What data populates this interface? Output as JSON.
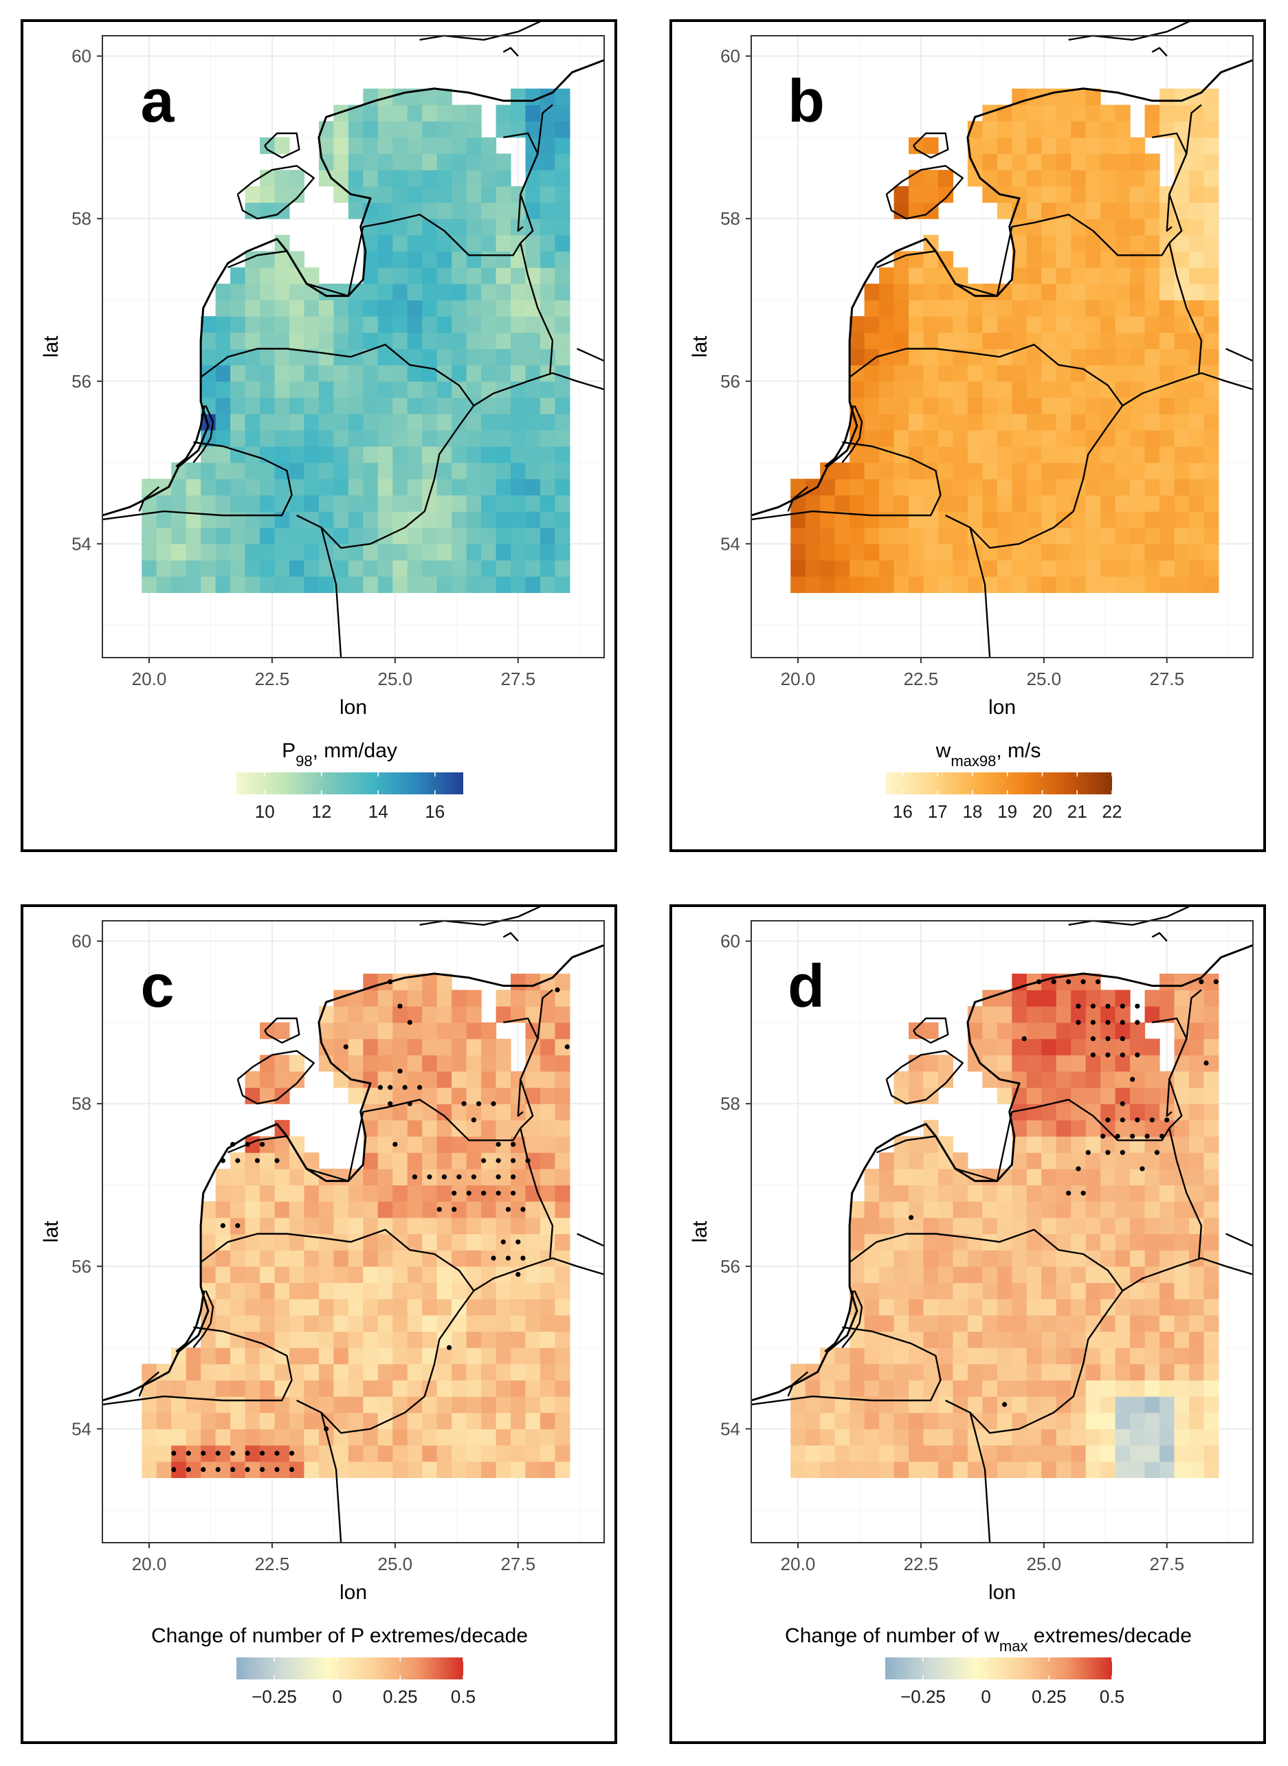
{
  "figure": {
    "axes": {
      "x_label": "lon",
      "y_label": "lat",
      "x_ticks": [
        "20.0",
        "22.5",
        "25.0",
        "27.5"
      ],
      "y_ticks": [
        "60",
        "58",
        "56",
        "54"
      ]
    },
    "panels": [
      {
        "letter": "a",
        "legend_title_main": "P",
        "legend_title_sub": "98",
        "legend_title_rest": ", mm/day",
        "legend_ticks": [
          "10",
          "12",
          "14",
          "16"
        ],
        "legend_range": [
          9,
          17
        ],
        "colormap": "YlGnBu",
        "colors": [
          "#f4f9cc",
          "#c4e6b6",
          "#7fc9bb",
          "#41b6c4",
          "#2c86b9",
          "#233f96"
        ]
      },
      {
        "letter": "b",
        "legend_title_main": "w",
        "legend_title_sub": "max98",
        "legend_title_rest": ", m/s",
        "legend_ticks": [
          "16",
          "17",
          "18",
          "19",
          "20",
          "21",
          "22"
        ],
        "legend_range": [
          15.5,
          22
        ],
        "colormap": "YlOrBr",
        "colors": [
          "#fff6cc",
          "#fed98e",
          "#fdb247",
          "#f1861b",
          "#cc5a0c",
          "#8c3506"
        ]
      },
      {
        "letter": "c",
        "legend_title_main": "Change of number of P extremes/decade",
        "legend_title_sub": "",
        "legend_title_rest": "",
        "legend_ticks": [
          "−0.25",
          "0",
          "0.25",
          "0.5"
        ],
        "legend_range": [
          -0.4,
          0.5
        ],
        "colormap": "diverging",
        "colors": [
          "#8fb0c9",
          "#cfdbd6",
          "#fff9c4",
          "#fcd39a",
          "#f19766",
          "#d43025"
        ]
      },
      {
        "letter": "d",
        "legend_title_main": "Change of number of w",
        "legend_title_sub": "max",
        "legend_title_rest": " extremes/decade",
        "legend_ticks": [
          "−0.25",
          "0",
          "0.25",
          "0.5"
        ],
        "legend_range": [
          -0.4,
          0.5
        ],
        "colormap": "diverging",
        "colors": [
          "#8fb0c9",
          "#cfdbd6",
          "#fff9c4",
          "#fcd39a",
          "#f19766",
          "#d43025"
        ]
      }
    ]
  }
}
